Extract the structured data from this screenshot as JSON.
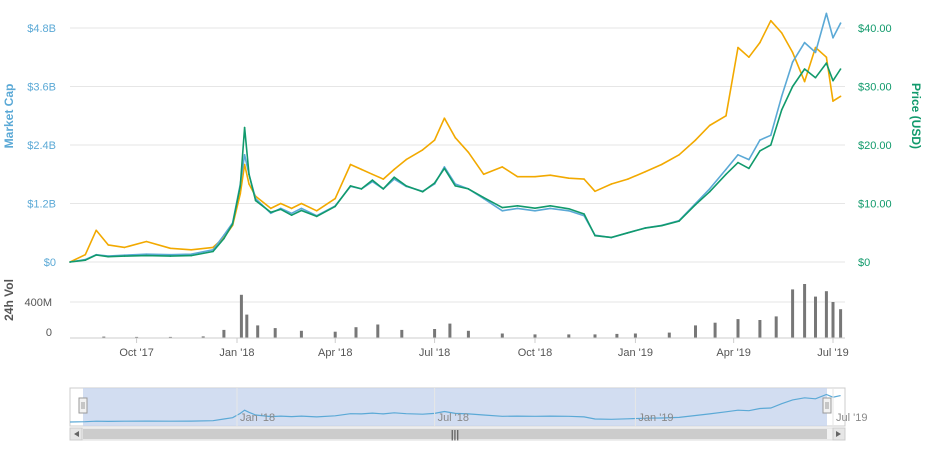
{
  "chart_data": {
    "type": "line",
    "title": "",
    "x_range": [
      "2017-08",
      "2019-07"
    ],
    "x_ticks": [
      "Oct '17",
      "Jan '18",
      "Apr '18",
      "Jul '18",
      "Oct '18",
      "Jan '19",
      "Apr '19",
      "Jul '19"
    ],
    "left_axis": {
      "label": "Market Cap",
      "ticks": [
        "$0",
        "$1.2B",
        "$2.4B",
        "$3.6B",
        "$4.8B"
      ],
      "range": [
        0,
        4.8
      ],
      "color": "#5ba9d6"
    },
    "right_axis": {
      "label": "Price (USD)",
      "ticks": [
        "$0",
        "$10.00",
        "$20.00",
        "$30.00",
        "$40.00"
      ],
      "range": [
        0,
        40
      ],
      "color": "#119a6c"
    },
    "series": [
      {
        "key": "market_cap",
        "axis": "left",
        "color": "#5ba9d6",
        "values": [
          [
            "2017-08-01",
            0.0
          ],
          [
            "2017-08-15",
            0.05
          ],
          [
            "2017-08-25",
            0.15
          ],
          [
            "2017-09-05",
            0.12
          ],
          [
            "2017-09-20",
            0.14
          ],
          [
            "2017-10-10",
            0.16
          ],
          [
            "2017-11-01",
            0.15
          ],
          [
            "2017-11-20",
            0.16
          ],
          [
            "2017-12-10",
            0.25
          ],
          [
            "2017-12-20",
            0.55
          ],
          [
            "2017-12-28",
            0.8
          ],
          [
            "2018-01-04",
            1.6
          ],
          [
            "2018-01-08",
            2.2
          ],
          [
            "2018-01-12",
            1.8
          ],
          [
            "2018-01-18",
            1.3
          ],
          [
            "2018-02-01",
            1.0
          ],
          [
            "2018-02-10",
            1.1
          ],
          [
            "2018-02-20",
            1.0
          ],
          [
            "2018-03-01",
            1.1
          ],
          [
            "2018-03-15",
            0.95
          ],
          [
            "2018-04-01",
            1.15
          ],
          [
            "2018-04-15",
            1.55
          ],
          [
            "2018-04-25",
            1.5
          ],
          [
            "2018-05-05",
            1.65
          ],
          [
            "2018-05-15",
            1.5
          ],
          [
            "2018-05-25",
            1.7
          ],
          [
            "2018-06-05",
            1.55
          ],
          [
            "2018-06-20",
            1.45
          ],
          [
            "2018-07-01",
            1.6
          ],
          [
            "2018-07-10",
            1.95
          ],
          [
            "2018-07-20",
            1.6
          ],
          [
            "2018-08-01",
            1.5
          ],
          [
            "2018-08-15",
            1.3
          ],
          [
            "2018-09-01",
            1.05
          ],
          [
            "2018-09-15",
            1.1
          ],
          [
            "2018-10-01",
            1.05
          ],
          [
            "2018-10-15",
            1.1
          ],
          [
            "2018-11-01",
            1.05
          ],
          [
            "2018-11-15",
            0.95
          ],
          [
            "2018-11-25",
            0.55
          ],
          [
            "2018-12-10",
            0.5
          ],
          [
            "2018-12-25",
            0.6
          ],
          [
            "2019-01-10",
            0.7
          ],
          [
            "2019-01-25",
            0.75
          ],
          [
            "2019-02-10",
            0.85
          ],
          [
            "2019-02-25",
            1.2
          ],
          [
            "2019-03-10",
            1.5
          ],
          [
            "2019-03-25",
            1.9
          ],
          [
            "2019-04-05",
            2.2
          ],
          [
            "2019-04-15",
            2.1
          ],
          [
            "2019-04-25",
            2.5
          ],
          [
            "2019-05-05",
            2.6
          ],
          [
            "2019-05-15",
            3.4
          ],
          [
            "2019-05-25",
            4.1
          ],
          [
            "2019-06-05",
            4.5
          ],
          [
            "2019-06-15",
            4.3
          ],
          [
            "2019-06-25",
            5.1
          ],
          [
            "2019-07-01",
            4.6
          ],
          [
            "2019-07-08",
            4.9
          ]
        ]
      },
      {
        "key": "price",
        "axis": "right",
        "color": "#119a6c",
        "values": [
          [
            "2017-08-01",
            0.0
          ],
          [
            "2017-08-15",
            0.3
          ],
          [
            "2017-08-25",
            1.2
          ],
          [
            "2017-09-05",
            0.9
          ],
          [
            "2017-09-20",
            1.0
          ],
          [
            "2017-10-10",
            1.1
          ],
          [
            "2017-11-01",
            1.0
          ],
          [
            "2017-11-20",
            1.1
          ],
          [
            "2017-12-10",
            1.8
          ],
          [
            "2017-12-20",
            4.0
          ],
          [
            "2017-12-28",
            6.5
          ],
          [
            "2018-01-04",
            13.0
          ],
          [
            "2018-01-08",
            23.0
          ],
          [
            "2018-01-12",
            15.0
          ],
          [
            "2018-01-18",
            10.5
          ],
          [
            "2018-02-01",
            8.5
          ],
          [
            "2018-02-10",
            9.0
          ],
          [
            "2018-02-20",
            8.0
          ],
          [
            "2018-03-01",
            8.8
          ],
          [
            "2018-03-15",
            7.8
          ],
          [
            "2018-04-01",
            9.5
          ],
          [
            "2018-04-15",
            13.0
          ],
          [
            "2018-04-25",
            12.5
          ],
          [
            "2018-05-05",
            14.0
          ],
          [
            "2018-05-15",
            12.5
          ],
          [
            "2018-05-25",
            14.5
          ],
          [
            "2018-06-05",
            13.0
          ],
          [
            "2018-06-20",
            12.0
          ],
          [
            "2018-07-01",
            13.5
          ],
          [
            "2018-07-10",
            16.0
          ],
          [
            "2018-07-20",
            13.0
          ],
          [
            "2018-08-01",
            12.5
          ],
          [
            "2018-08-15",
            11.0
          ],
          [
            "2018-09-01",
            9.3
          ],
          [
            "2018-09-15",
            9.6
          ],
          [
            "2018-10-01",
            9.2
          ],
          [
            "2018-10-15",
            9.6
          ],
          [
            "2018-11-01",
            9.1
          ],
          [
            "2018-11-15",
            8.2
          ],
          [
            "2018-11-25",
            4.5
          ],
          [
            "2018-12-10",
            4.2
          ],
          [
            "2018-12-25",
            5.0
          ],
          [
            "2019-01-10",
            5.8
          ],
          [
            "2019-01-25",
            6.2
          ],
          [
            "2019-02-10",
            7.0
          ],
          [
            "2019-02-25",
            9.8
          ],
          [
            "2019-03-10",
            12.0
          ],
          [
            "2019-03-25",
            15.0
          ],
          [
            "2019-04-05",
            17.0
          ],
          [
            "2019-04-15",
            16.0
          ],
          [
            "2019-04-25",
            19.0
          ],
          [
            "2019-05-05",
            20.0
          ],
          [
            "2019-05-15",
            26.0
          ],
          [
            "2019-05-25",
            30.0
          ],
          [
            "2019-06-05",
            33.0
          ],
          [
            "2019-06-15",
            31.5
          ],
          [
            "2019-06-25",
            34.0
          ],
          [
            "2019-07-01",
            31.0
          ],
          [
            "2019-07-08",
            33.0
          ]
        ]
      },
      {
        "key": "btc_price",
        "axis": "left",
        "color": "#f2a900",
        "values": [
          [
            "2017-08-01",
            0.0
          ],
          [
            "2017-08-15",
            0.15
          ],
          [
            "2017-08-25",
            0.65
          ],
          [
            "2017-09-05",
            0.35
          ],
          [
            "2017-09-20",
            0.3
          ],
          [
            "2017-10-10",
            0.42
          ],
          [
            "2017-11-01",
            0.28
          ],
          [
            "2017-11-20",
            0.25
          ],
          [
            "2017-12-10",
            0.3
          ],
          [
            "2017-12-20",
            0.5
          ],
          [
            "2017-12-28",
            0.75
          ],
          [
            "2018-01-04",
            1.4
          ],
          [
            "2018-01-08",
            2.0
          ],
          [
            "2018-01-12",
            1.6
          ],
          [
            "2018-01-18",
            1.35
          ],
          [
            "2018-02-01",
            1.1
          ],
          [
            "2018-02-10",
            1.2
          ],
          [
            "2018-02-20",
            1.1
          ],
          [
            "2018-03-01",
            1.2
          ],
          [
            "2018-03-15",
            1.05
          ],
          [
            "2018-04-01",
            1.3
          ],
          [
            "2018-04-15",
            2.0
          ],
          [
            "2018-04-25",
            1.9
          ],
          [
            "2018-05-05",
            1.8
          ],
          [
            "2018-05-15",
            1.7
          ],
          [
            "2018-05-25",
            1.9
          ],
          [
            "2018-06-05",
            2.1
          ],
          [
            "2018-06-20",
            2.3
          ],
          [
            "2018-07-01",
            2.5
          ],
          [
            "2018-07-10",
            2.95
          ],
          [
            "2018-07-20",
            2.55
          ],
          [
            "2018-08-01",
            2.25
          ],
          [
            "2018-08-15",
            1.8
          ],
          [
            "2018-09-01",
            1.95
          ],
          [
            "2018-09-15",
            1.75
          ],
          [
            "2018-10-01",
            1.75
          ],
          [
            "2018-10-15",
            1.78
          ],
          [
            "2018-11-01",
            1.72
          ],
          [
            "2018-11-15",
            1.7
          ],
          [
            "2018-11-25",
            1.45
          ],
          [
            "2018-12-10",
            1.6
          ],
          [
            "2018-12-25",
            1.7
          ],
          [
            "2019-01-10",
            1.85
          ],
          [
            "2019-01-25",
            2.0
          ],
          [
            "2019-02-10",
            2.2
          ],
          [
            "2019-02-25",
            2.5
          ],
          [
            "2019-03-10",
            2.8
          ],
          [
            "2019-03-25",
            3.0
          ],
          [
            "2019-04-05",
            4.4
          ],
          [
            "2019-04-15",
            4.2
          ],
          [
            "2019-04-25",
            4.5
          ],
          [
            "2019-05-05",
            4.95
          ],
          [
            "2019-05-15",
            4.7
          ],
          [
            "2019-05-25",
            4.3
          ],
          [
            "2019-06-05",
            3.7
          ],
          [
            "2019-06-15",
            4.4
          ],
          [
            "2019-06-25",
            4.2
          ],
          [
            "2019-07-01",
            3.3
          ],
          [
            "2019-07-08",
            3.4
          ]
        ]
      }
    ],
    "volume": {
      "label": "24h Vol",
      "ticks": [
        "0",
        "400M"
      ],
      "range": [
        0,
        700
      ],
      "color": "#777777",
      "values": [
        [
          "2017-08-01",
          0
        ],
        [
          "2017-09-01",
          15
        ],
        [
          "2017-10-01",
          12
        ],
        [
          "2017-11-01",
          12
        ],
        [
          "2017-12-01",
          18
        ],
        [
          "2017-12-20",
          90
        ],
        [
          "2018-01-05",
          480
        ],
        [
          "2018-01-10",
          260
        ],
        [
          "2018-01-20",
          140
        ],
        [
          "2018-02-05",
          110
        ],
        [
          "2018-03-01",
          80
        ],
        [
          "2018-04-01",
          70
        ],
        [
          "2018-04-20",
          120
        ],
        [
          "2018-05-10",
          150
        ],
        [
          "2018-06-01",
          90
        ],
        [
          "2018-07-01",
          100
        ],
        [
          "2018-07-15",
          160
        ],
        [
          "2018-08-01",
          80
        ],
        [
          "2018-09-01",
          50
        ],
        [
          "2018-10-01",
          40
        ],
        [
          "2018-11-01",
          40
        ],
        [
          "2018-11-25",
          40
        ],
        [
          "2018-12-15",
          45
        ],
        [
          "2019-01-01",
          50
        ],
        [
          "2019-02-01",
          60
        ],
        [
          "2019-02-25",
          140
        ],
        [
          "2019-03-15",
          170
        ],
        [
          "2019-04-05",
          210
        ],
        [
          "2019-04-25",
          200
        ],
        [
          "2019-05-10",
          240
        ],
        [
          "2019-05-25",
          540
        ],
        [
          "2019-06-05",
          600
        ],
        [
          "2019-06-15",
          460
        ],
        [
          "2019-06-25",
          520
        ],
        [
          "2019-07-01",
          400
        ],
        [
          "2019-07-08",
          320
        ]
      ]
    },
    "navigator": {
      "labels": [
        "Jan '18",
        "Jul '18",
        "Jan '19",
        "Jul '19"
      ],
      "fill_color": "#c7d4ed",
      "line_color": "#5ba9d6"
    },
    "scrollbar_grip": "|||"
  }
}
